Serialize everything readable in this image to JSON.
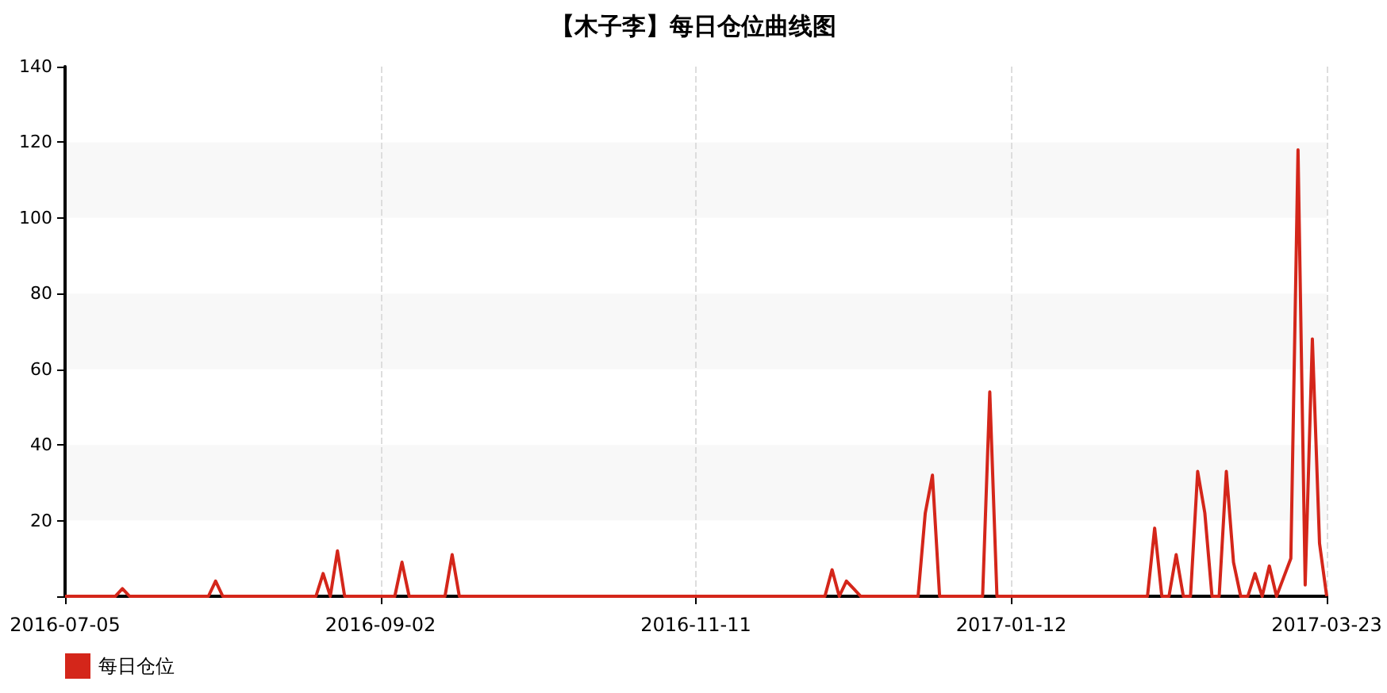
{
  "chart_data": {
    "type": "line",
    "title": "【木子李】每日仓位曲线图",
    "categories": [
      "2016-07-05",
      null,
      null,
      null,
      null,
      null,
      null,
      null,
      null,
      null,
      null,
      null,
      null,
      null,
      null,
      null,
      null,
      null,
      null,
      null,
      null,
      null,
      null,
      null,
      null,
      null,
      null,
      null,
      null,
      null,
      null,
      null,
      null,
      null,
      null,
      null,
      null,
      null,
      null,
      null,
      null,
      null,
      null,
      null,
      "2016-09-02",
      null,
      null,
      null,
      null,
      null,
      null,
      null,
      null,
      null,
      null,
      null,
      null,
      null,
      null,
      null,
      null,
      null,
      null,
      null,
      null,
      null,
      null,
      null,
      null,
      null,
      null,
      null,
      null,
      null,
      null,
      null,
      null,
      null,
      null,
      null,
      null,
      null,
      null,
      null,
      null,
      null,
      null,
      null,
      "2016-11-11",
      null,
      null,
      null,
      null,
      null,
      null,
      null,
      null,
      null,
      null,
      null,
      null,
      null,
      null,
      null,
      null,
      null,
      null,
      null,
      null,
      null,
      null,
      null,
      null,
      null,
      null,
      null,
      null,
      null,
      null,
      null,
      null,
      null,
      null,
      null,
      null,
      null,
      null,
      null,
      null,
      null,
      null,
      null,
      "2017-01-12",
      null,
      null,
      null,
      null,
      null,
      null,
      null,
      null,
      null,
      null,
      null,
      null,
      null,
      null,
      null,
      null,
      null,
      null,
      null,
      null,
      null,
      null,
      null,
      null,
      null,
      null,
      null,
      null,
      null,
      null,
      null,
      null,
      null,
      null,
      null,
      null,
      null,
      null,
      null,
      null,
      null,
      null,
      null,
      "2017-03-23"
    ],
    "series": [
      {
        "name": "每日仓位",
        "color": "#d4261a",
        "values": [
          0,
          0,
          0,
          0,
          0,
          0,
          0,
          0,
          2,
          0,
          0,
          0,
          0,
          0,
          0,
          0,
          0,
          0,
          0,
          0,
          0,
          4,
          0,
          0,
          0,
          0,
          0,
          0,
          0,
          0,
          0,
          0,
          0,
          0,
          0,
          0,
          6,
          0,
          12,
          0,
          0,
          0,
          0,
          0,
          0,
          0,
          0,
          9,
          0,
          0,
          0,
          0,
          0,
          0,
          11,
          0,
          0,
          0,
          0,
          0,
          0,
          0,
          0,
          0,
          0,
          0,
          0,
          0,
          0,
          0,
          0,
          0,
          0,
          0,
          0,
          0,
          0,
          0,
          0,
          0,
          0,
          0,
          0,
          0,
          0,
          0,
          0,
          0,
          0,
          0,
          0,
          0,
          0,
          0,
          0,
          0,
          0,
          0,
          0,
          0,
          0,
          0,
          0,
          0,
          0,
          0,
          0,
          7,
          0,
          4,
          2,
          0,
          0,
          0,
          0,
          0,
          0,
          0,
          0,
          0,
          22,
          32,
          0,
          0,
          0,
          0,
          0,
          0,
          0,
          54,
          0,
          0,
          0,
          0,
          0,
          0,
          0,
          0,
          0,
          0,
          0,
          0,
          0,
          0,
          0,
          0,
          0,
          0,
          0,
          0,
          0,
          0,
          18,
          0,
          0,
          11,
          0,
          0,
          33,
          22,
          0,
          0,
          33,
          9,
          0,
          0,
          6,
          0,
          8,
          0,
          5,
          10,
          118,
          3,
          68,
          14,
          0
        ]
      }
    ],
    "ylim": [
      0,
      140
    ],
    "yticks": [
      {
        "value": 0,
        "label": null
      },
      20,
      40,
      60,
      80,
      100,
      120,
      140
    ],
    "grid": true,
    "legend": "bottom left",
    "marker": "none",
    "line_style": "solid"
  }
}
